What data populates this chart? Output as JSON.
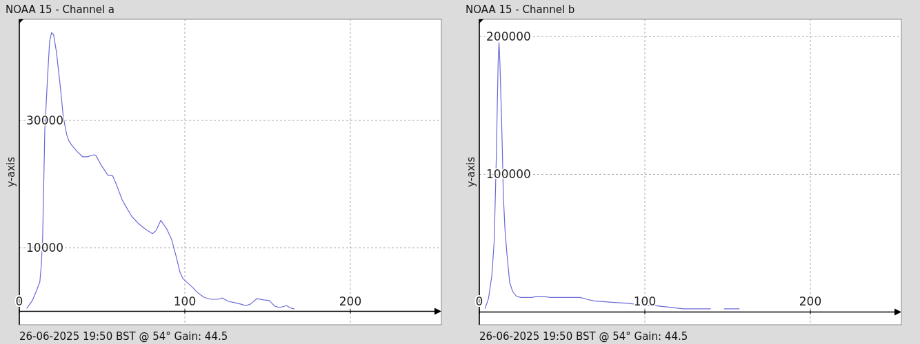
{
  "chart_data": [
    {
      "type": "line",
      "title": "NOAA 15 - Channel a",
      "ylabel": "y-axis",
      "annotations": [
        "26-06-2025 19:50 BST @ 54° Gain: 44.5"
      ],
      "xlim": [
        0,
        255
      ],
      "xticks": [
        0,
        100,
        200
      ],
      "ylim": [
        -2100,
        45900
      ],
      "yticks": [
        10000,
        30000
      ],
      "grid": true,
      "x": [
        4.6,
        7.9,
        10,
        12.4,
        13.3,
        14.1,
        14.9,
        15.4,
        17,
        18.3,
        19.5,
        20.7,
        22.4,
        24.5,
        26.6,
        28.6,
        29.9,
        32,
        35,
        38.2,
        41,
        45.2,
        46.5,
        49.4,
        53.5,
        56.4,
        59,
        62,
        63.9,
        68,
        72,
        76.3,
        80.5,
        82.6,
        85.5,
        89,
        92,
        95,
        97,
        99,
        102,
        105,
        107.4,
        111.6,
        115.8,
        120,
        122.8,
        126,
        129.5,
        134.4,
        136.5,
        139.4,
        143.6,
        147.7,
        151,
        154.4,
        157.3,
        161.4,
        164.3,
        166
      ],
      "series": [
        {
          "color": "#6a6ad8",
          "values": [
            500,
            1700,
            3000,
            4600,
            7300,
            11600,
            21900,
            28400,
            36500,
            42400,
            43800,
            43500,
            40800,
            36000,
            30500,
            27800,
            26800,
            26000,
            25100,
            24300,
            24300,
            24600,
            24400,
            23000,
            21400,
            21300,
            19700,
            17600,
            16700,
            14900,
            13800,
            12900,
            12200,
            12700,
            14300,
            13000,
            11300,
            8400,
            6200,
            5100,
            4400,
            3700,
            3000,
            2200,
            1900,
            1900,
            2100,
            1600,
            1400,
            1100,
            900,
            1100,
            2000,
            1800,
            1700,
            800,
            600,
            900,
            500,
            400
          ]
        }
      ]
    },
    {
      "type": "line",
      "title": "NOAA 15 - Channel b",
      "ylabel": "y-axis",
      "annotations": [
        "26-06-2025 19:50 BST @ 54° Gain: 44.5"
      ],
      "xlim": [
        0,
        255
      ],
      "xticks": [
        0,
        100,
        200
      ],
      "ylim": [
        -9300,
        212700
      ],
      "yticks": [
        100000,
        200000
      ],
      "grid": true,
      "x": [
        3.5,
        5.6,
        7.6,
        9,
        9.7,
        10.4,
        10.8,
        11.4,
        11.9,
        12.4,
        13.3,
        13.9,
        14.5,
        15.5,
        16.6,
        18.3,
        20.1,
        22.2,
        24.9,
        31.8,
        34.6,
        38.8,
        42.9,
        53.9,
        60.9,
        65,
        69.2,
        80.2,
        89.9,
        98.2,
        106.5,
        116.2,
        123.1,
        139.7,
        144,
        148,
        157
      ],
      "series": [
        {
          "color": "#6a6ad8",
          "values": [
            2500,
            10000,
            26700,
            51700,
            85000,
            118300,
            146700,
            182500,
            195800,
            182500,
            146700,
            118300,
            85000,
            60000,
            43300,
            21700,
            15000,
            11700,
            10500,
            10500,
            11300,
            11300,
            10500,
            10500,
            10500,
            9200,
            8000,
            7000,
            6300,
            5000,
            4500,
            3300,
            2300,
            2300,
            null,
            2300,
            2300
          ]
        }
      ]
    }
  ]
}
